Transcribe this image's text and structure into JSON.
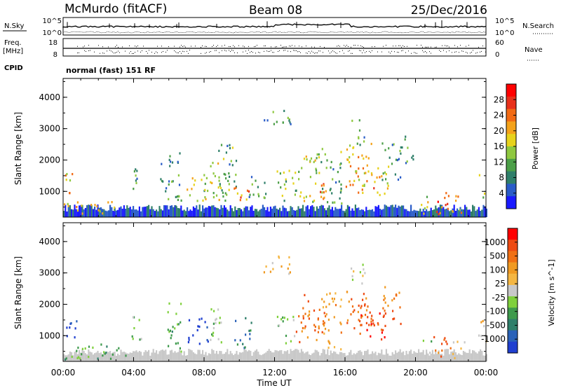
{
  "header": {
    "station": "McMurdo (fitACF)",
    "beam": "Beam 08",
    "date": "25/Dec/2016"
  },
  "strip1": {
    "left_label": "N.Sky",
    "right_label": "N.Search",
    "left_ticks": [
      "10^5",
      "10^0"
    ],
    "right_ticks": [
      "10^5",
      "10^0"
    ]
  },
  "strip2": {
    "left_label_top": "Freq.",
    "left_label_bottom": "[MHz]",
    "right_label": "Nave",
    "left_ticks": [
      "18",
      "8"
    ],
    "right_ticks": [
      "60",
      "0"
    ]
  },
  "cpid": {
    "label": "CPID",
    "text": "normal (fast) 151 RF"
  },
  "chart_data": [
    {
      "type": "heatmap",
      "name": "power",
      "ylabel": "Slant Range [km]",
      "yticks": [
        1000,
        2000,
        3000,
        4000
      ],
      "ylim": [
        180,
        4600
      ],
      "xticks": [
        "00:00",
        "04:00",
        "08:00",
        "12:00",
        "16:00",
        "20:00",
        "00:00"
      ],
      "colorbar": {
        "label": "Power [dB]",
        "ticks": [
          "28",
          "24",
          "20",
          "16",
          "12",
          "8",
          "4"
        ],
        "colors": [
          "#1a1aff",
          "#2a5cc8",
          "#2f7f6a",
          "#4c9f48",
          "#8fc840",
          "#e7d21c",
          "#f4a21a",
          "#f26a14",
          "#e8301a",
          "#ff0000"
        ]
      },
      "blobs": [
        {
          "t": 0.3,
          "r": 1250,
          "dt": 0.3,
          "dr": 400,
          "p": 18
        },
        {
          "t": 1.5,
          "r": 500,
          "dt": 1.5,
          "dr": 220,
          "p": 16
        },
        {
          "t": 4.1,
          "r": 1300,
          "dt": 0.3,
          "dr": 450,
          "p": 10
        },
        {
          "t": 5.8,
          "r": 1500,
          "dt": 0.3,
          "dr": 500,
          "p": 8
        },
        {
          "t": 6.3,
          "r": 1400,
          "dt": 0.4,
          "dr": 900,
          "p": 10
        },
        {
          "t": 7.6,
          "r": 1150,
          "dt": 0.6,
          "dr": 450,
          "p": 14
        },
        {
          "t": 8.6,
          "r": 1350,
          "dt": 0.5,
          "dr": 600,
          "p": 14
        },
        {
          "t": 9.3,
          "r": 1700,
          "dt": 0.5,
          "dr": 1100,
          "p": 10
        },
        {
          "t": 10.1,
          "r": 950,
          "dt": 0.45,
          "dr": 350,
          "p": 22
        },
        {
          "t": 11.0,
          "r": 1100,
          "dt": 0.5,
          "dr": 450,
          "p": 10
        },
        {
          "t": 12.1,
          "r": 3300,
          "dt": 0.8,
          "dr": 300,
          "p": 8
        },
        {
          "t": 12.6,
          "r": 1200,
          "dt": 0.5,
          "dr": 500,
          "p": 12
        },
        {
          "t": 13.8,
          "r": 1500,
          "dt": 0.7,
          "dr": 800,
          "p": 14
        },
        {
          "t": 14.4,
          "r": 1000,
          "dt": 0.5,
          "dr": 400,
          "p": 22
        },
        {
          "t": 15.2,
          "r": 1500,
          "dt": 0.6,
          "dr": 900,
          "p": 10
        },
        {
          "t": 16.8,
          "r": 1850,
          "dt": 0.8,
          "dr": 700,
          "p": 18
        },
        {
          "t": 17.6,
          "r": 1350,
          "dt": 0.9,
          "dr": 500,
          "p": 20
        },
        {
          "t": 16.7,
          "r": 2850,
          "dt": 0.4,
          "dr": 450,
          "p": 10
        },
        {
          "t": 18.6,
          "r": 2000,
          "dt": 0.6,
          "dr": 600,
          "p": 8
        },
        {
          "t": 19.6,
          "r": 2300,
          "dt": 0.3,
          "dr": 500,
          "p": 8
        },
        {
          "t": 20.6,
          "r": 600,
          "dt": 0.3,
          "dr": 350,
          "p": 14
        },
        {
          "t": 21.5,
          "r": 650,
          "dt": 0.5,
          "dr": 380,
          "p": 24
        },
        {
          "t": 22.4,
          "r": 600,
          "dt": 0.4,
          "dr": 300,
          "p": 18
        },
        {
          "t": 23.8,
          "r": 1200,
          "dt": 0.25,
          "dr": 400,
          "p": 12
        }
      ]
    },
    {
      "type": "heatmap",
      "name": "velocity",
      "ylabel": "Slant Range [km]",
      "yticks": [
        1000,
        2000,
        3000,
        4000
      ],
      "ylim": [
        180,
        4600
      ],
      "xlabel": "Time UT",
      "xticks": [
        "00:00",
        "04:00",
        "08:00",
        "12:00",
        "16:00",
        "20:00",
        "00:00"
      ],
      "colorbar": {
        "label": "Velocity [m s^-1]",
        "ticks": [
          "1000",
          "500",
          "100",
          "25",
          "-25",
          "-100",
          "-500",
          "-1000"
        ],
        "colors": [
          "#1f3fd0",
          "#2a62b8",
          "#2f7f6a",
          "#3e9a4c",
          "#7fd03c",
          "#c8c8c8",
          "#f4b642",
          "#f09a22",
          "#f07014",
          "#ee4a12",
          "#ff0000"
        ]
      },
      "blobs": [
        {
          "t": 0.4,
          "r": 1200,
          "dt": 0.35,
          "dr": 400,
          "v": 0
        },
        {
          "t": 1.8,
          "r": 520,
          "dt": 1.8,
          "dr": 260,
          "v": 3
        },
        {
          "t": 4.1,
          "r": 1300,
          "dt": 0.3,
          "dr": 450,
          "v": 4
        },
        {
          "t": 6.3,
          "r": 1400,
          "dt": 0.4,
          "dr": 900,
          "v": 3
        },
        {
          "t": 7.6,
          "r": 1150,
          "dt": 0.6,
          "dr": 450,
          "v": 0
        },
        {
          "t": 8.6,
          "r": 1350,
          "dt": 0.5,
          "dr": 600,
          "v": 4
        },
        {
          "t": 10.2,
          "r": 1100,
          "dt": 0.5,
          "dr": 500,
          "v": 2
        },
        {
          "t": 12.1,
          "r": 3300,
          "dt": 0.8,
          "dr": 300,
          "v": 6
        },
        {
          "t": 12.6,
          "r": 1250,
          "dt": 0.5,
          "dr": 500,
          "v": 4
        },
        {
          "t": 14.0,
          "r": 1600,
          "dt": 0.8,
          "dr": 800,
          "v": 8
        },
        {
          "t": 15.2,
          "r": 1500,
          "dt": 0.6,
          "dr": 900,
          "v": 7
        },
        {
          "t": 16.8,
          "r": 1900,
          "dt": 0.8,
          "dr": 700,
          "v": 8
        },
        {
          "t": 17.6,
          "r": 1350,
          "dt": 0.9,
          "dr": 500,
          "v": 9
        },
        {
          "t": 16.7,
          "r": 2900,
          "dt": 0.4,
          "dr": 450,
          "v": 5
        },
        {
          "t": 18.6,
          "r": 2000,
          "dt": 0.6,
          "dr": 600,
          "v": 8
        },
        {
          "t": 20.6,
          "r": 600,
          "dt": 0.3,
          "dr": 350,
          "v": 4
        },
        {
          "t": 21.5,
          "r": 680,
          "dt": 0.5,
          "dr": 380,
          "v": 8
        },
        {
          "t": 22.4,
          "r": 600,
          "dt": 0.4,
          "dr": 300,
          "v": 5
        },
        {
          "t": 23.8,
          "r": 1200,
          "dt": 0.25,
          "dr": 400,
          "v": 6
        }
      ]
    }
  ]
}
